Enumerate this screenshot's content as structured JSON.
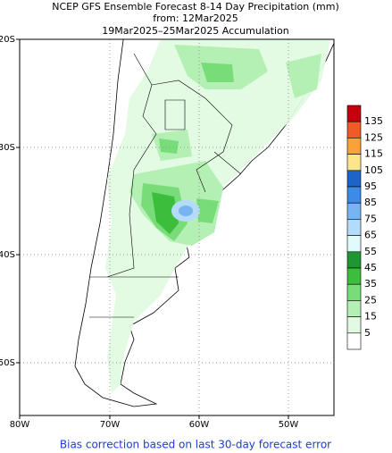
{
  "title": {
    "line1": "NCEP GFS Ensemble Forecast 8-14 Day Precipitation (mm)",
    "line2": "from: 12Mar2025",
    "line3": "19Mar2025–25Mar2025 Accumulation"
  },
  "latitude_labels": [
    "20S",
    "30S",
    "40S",
    "50S"
  ],
  "longitude_labels": [
    "80W",
    "70W",
    "60W",
    "50W"
  ],
  "legend": {
    "labels": [
      135,
      125,
      115,
      105,
      95,
      85,
      75,
      65,
      55,
      45,
      35,
      25,
      15,
      5
    ],
    "colors": [
      "#c8000e",
      "#f05a28",
      "#f9a23b",
      "#fde68a",
      "#1e64c8",
      "#3c8ce6",
      "#78b4f0",
      "#b4dcfa",
      "#e1fafa",
      "#1e9632",
      "#3cbe3c",
      "#78dc78",
      "#b4f0b4",
      "#e1fae1",
      "#ffffff"
    ]
  },
  "footer": "Bias correction based on last 30-day forecast error"
}
